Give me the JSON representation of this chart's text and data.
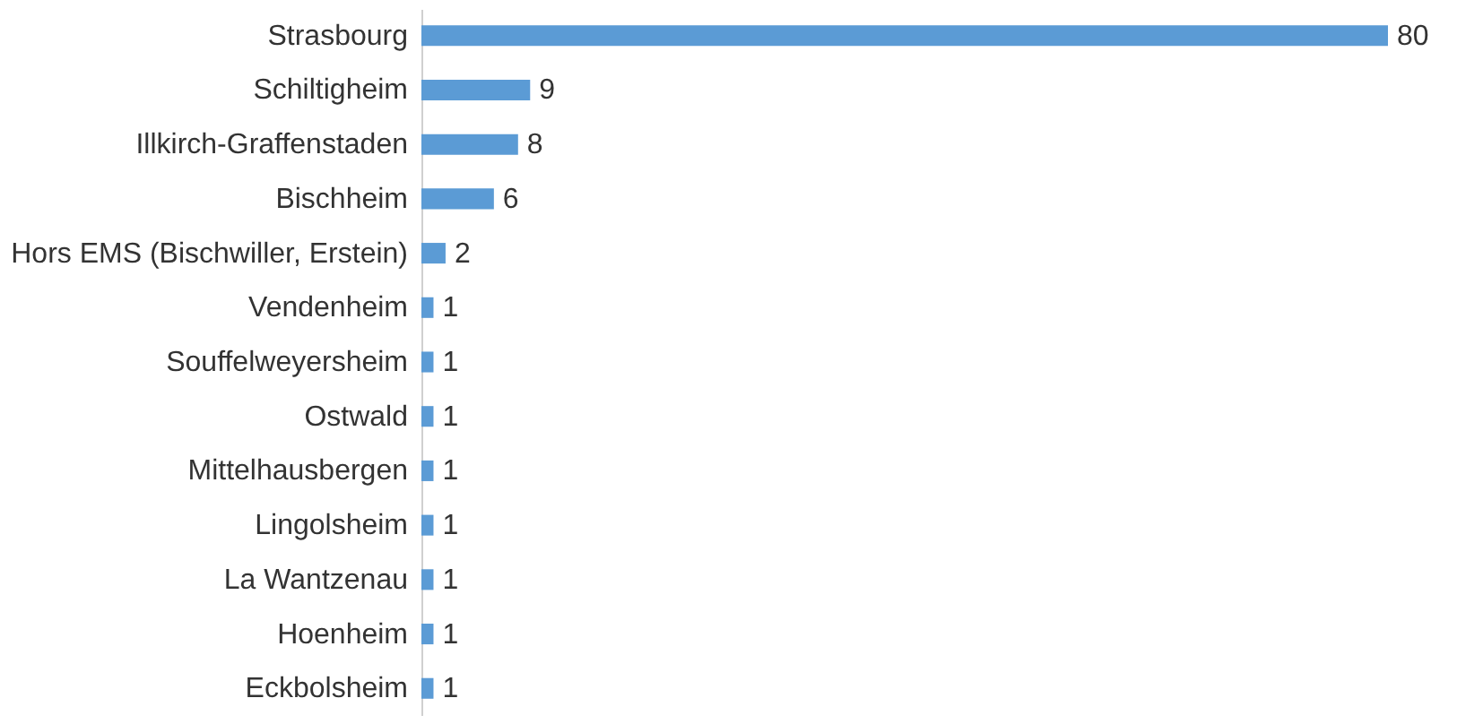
{
  "chart_data": {
    "type": "bar",
    "orientation": "horizontal",
    "data_labels": true,
    "categories": [
      "Strasbourg",
      "Schiltigheim",
      "Illkirch-Graffenstaden",
      "Bischheim",
      "Hors EMS (Bischwiller, Erstein)",
      "Vendenheim",
      "Souffelweyersheim",
      "Ostwald",
      "Mittelhausbergen",
      "Lingolsheim",
      "La Wantzenau",
      "Hoenheim",
      "Eckbolsheim"
    ],
    "values": [
      80,
      9,
      8,
      6,
      2,
      1,
      1,
      1,
      1,
      1,
      1,
      1,
      1
    ],
    "color": "#5b9bd5"
  }
}
